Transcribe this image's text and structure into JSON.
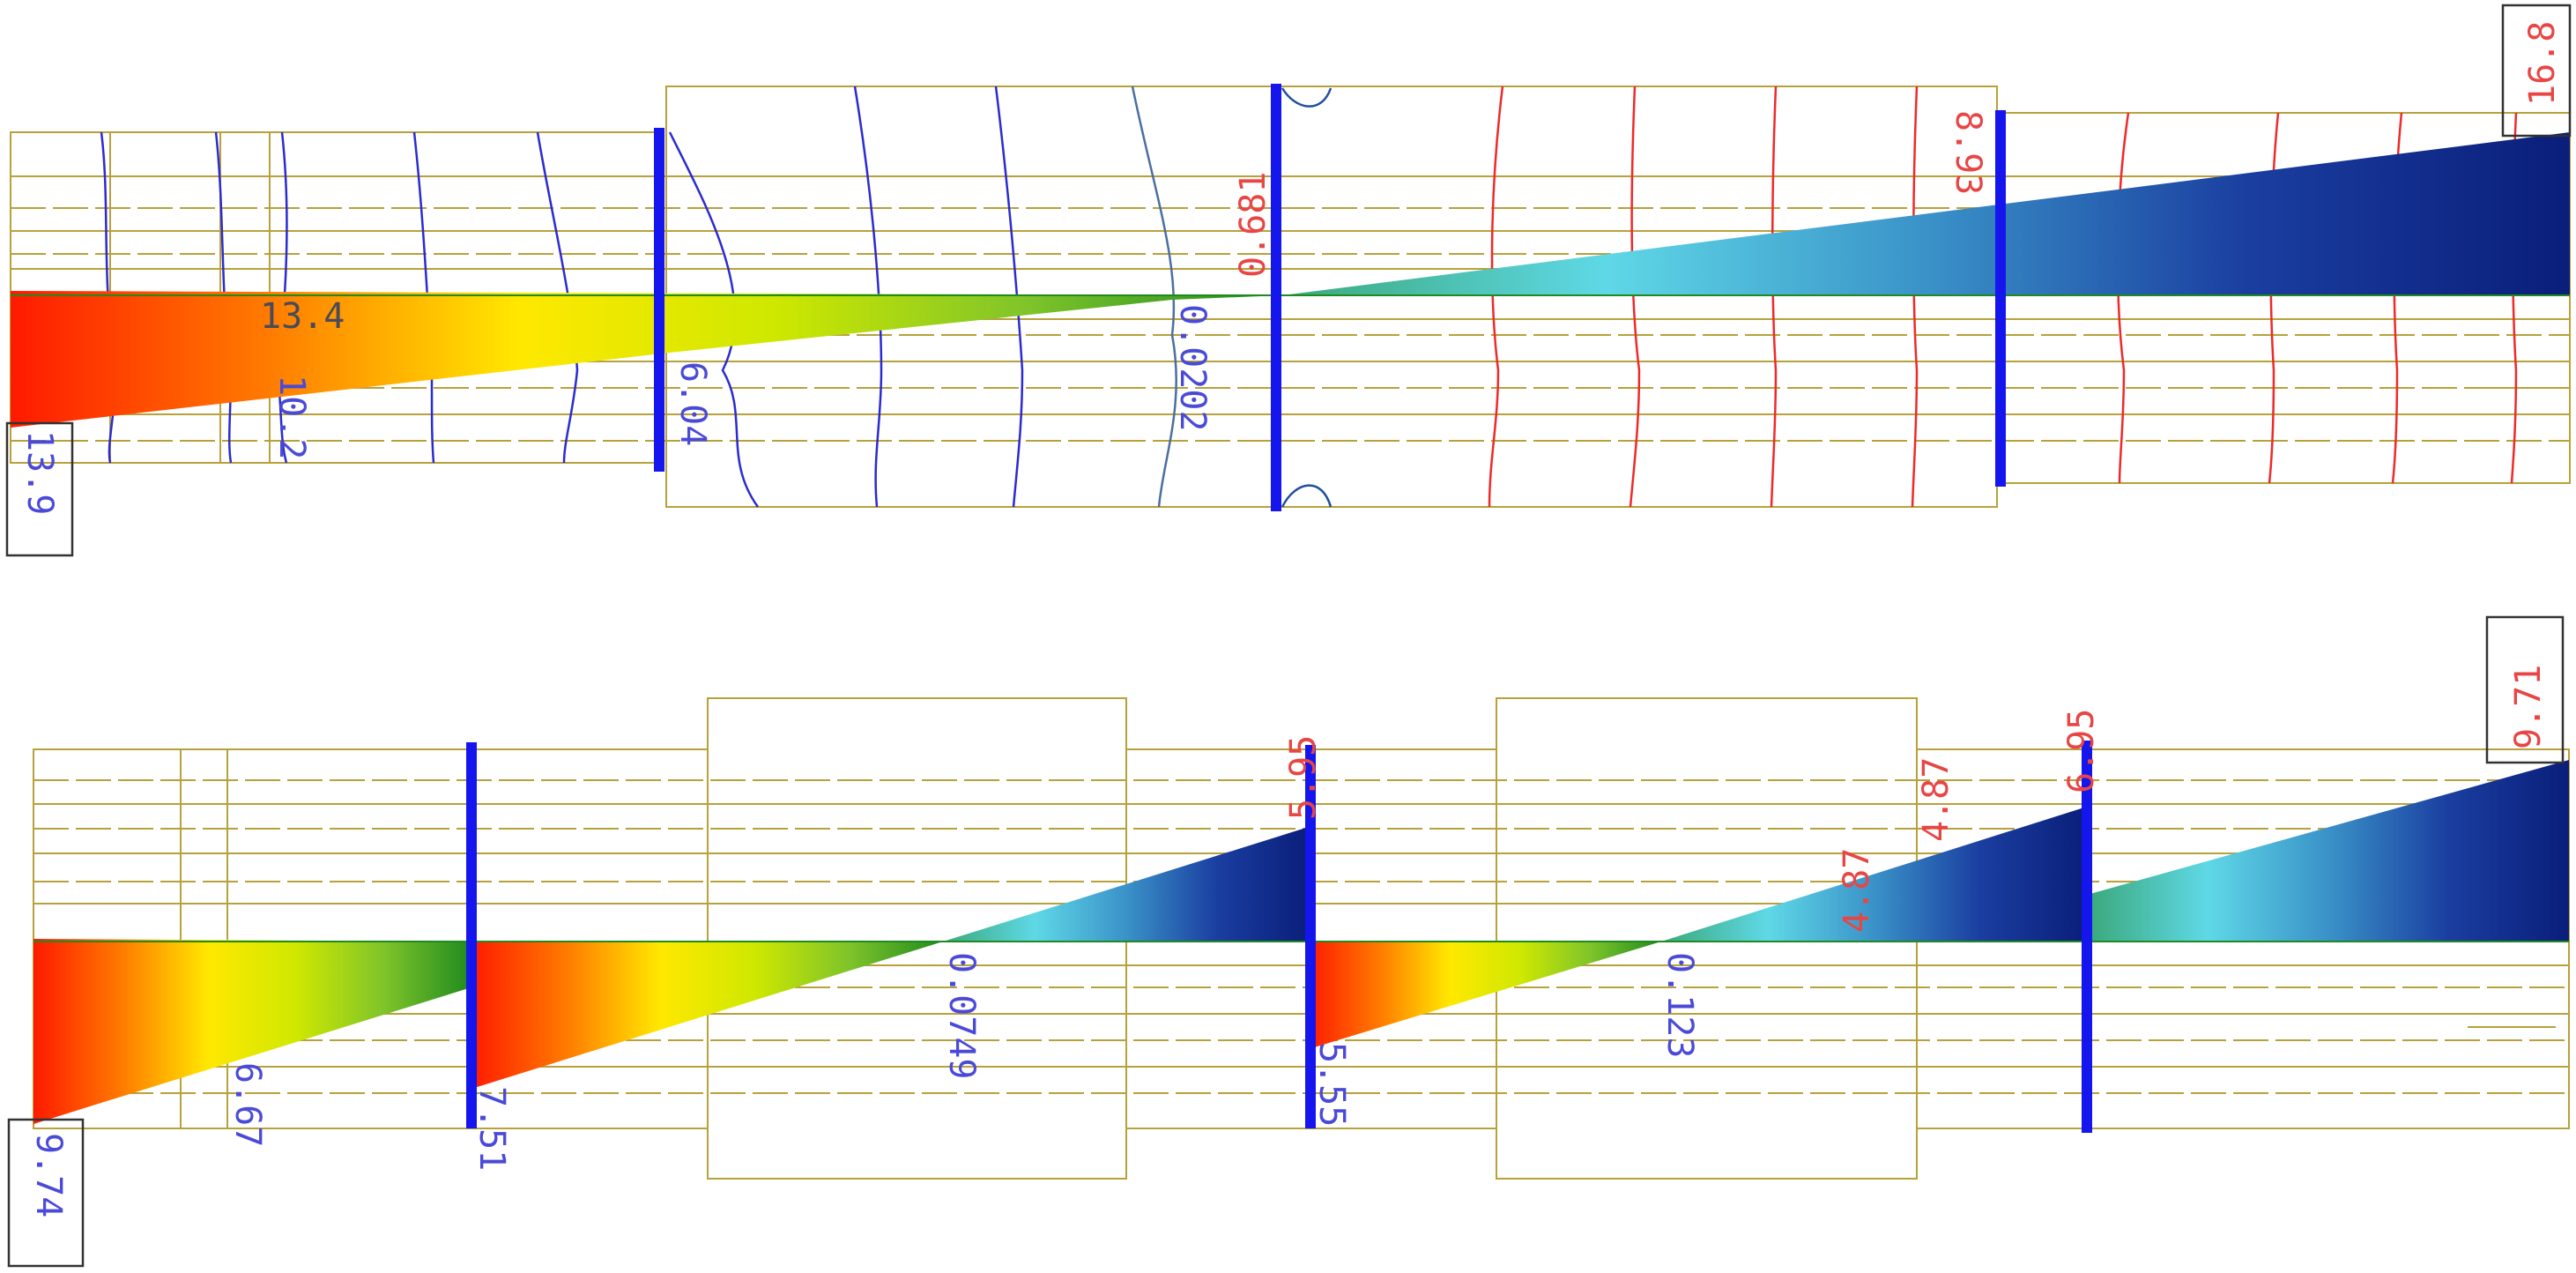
{
  "colors": {
    "outline": "#b8a13a",
    "support": "#1515ee",
    "contour_negative": "#2b2bd0",
    "contour_positive": "#ee2a2a",
    "contour_neutral": "#4a6fa0",
    "label_negative": "#4a4ad8",
    "label_positive": "#e84545",
    "label_dark": "#4a4a5a",
    "box": "#333333",
    "ramp": [
      "#ff1a00",
      "#ff7a00",
      "#ffe800",
      "#cfe800",
      "#7fc42a",
      "#1f8a1f",
      "#3aa87a",
      "#5fd8e6",
      "#3a92c8",
      "#1a3ea0",
      "#0a1e7a"
    ]
  },
  "top": {
    "labels": {
      "left_max": "13.9",
      "peak_neg": "13.4",
      "first_span": "10.2",
      "support_a": "6.04",
      "zero_cross": "0.0202",
      "pos_mid": "0.681",
      "pos_high": "8.93",
      "right_max": "16.8"
    }
  },
  "bottom": {
    "labels": {
      "left_max": "9.74",
      "first_span": "6.67",
      "support_a": "7.51",
      "zero_a": "0.0749",
      "pos_a": "5.95",
      "support_b": "5.55",
      "zero_b": "0.123",
      "pos_b1": "4.87",
      "pos_b2": "4.87",
      "pos_c": "6.95",
      "right_max": "9.71"
    }
  }
}
